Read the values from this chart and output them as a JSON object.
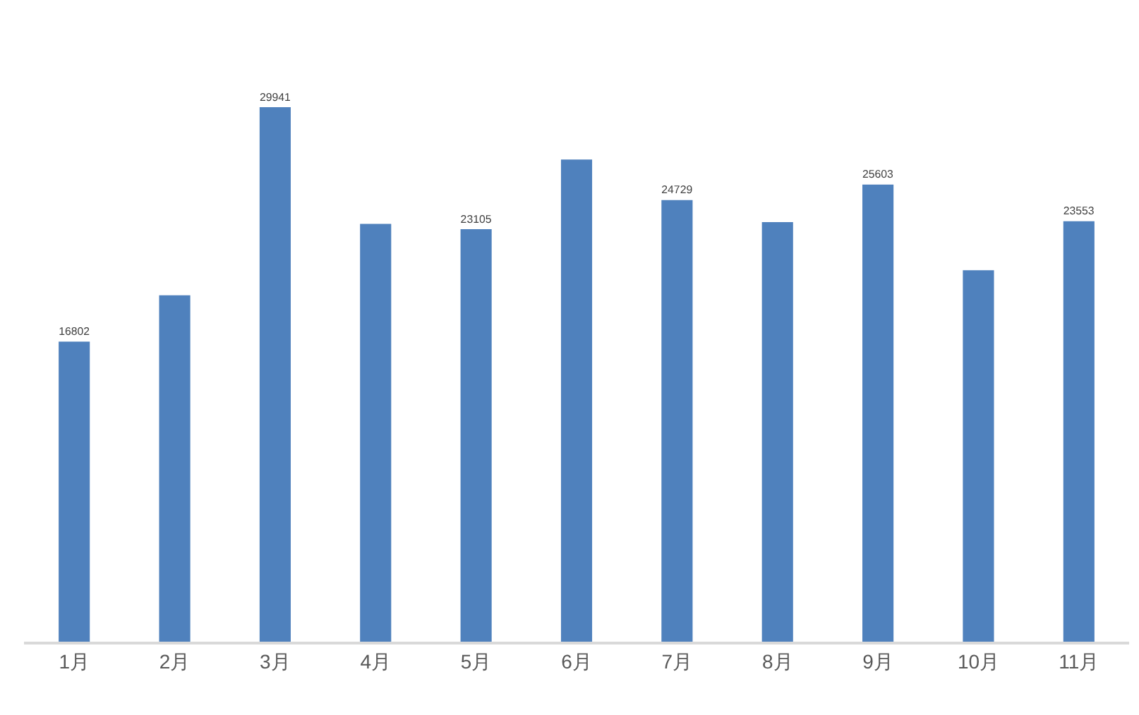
{
  "chart_data": {
    "type": "bar",
    "categories": [
      "1月",
      "2月",
      "3月",
      "4月",
      "5月",
      "6月",
      "7月",
      "8月",
      "9月",
      "10月",
      "11月"
    ],
    "values": [
      16802,
      19400,
      29941,
      23400,
      23105,
      27000,
      24729,
      23500,
      25603,
      20800,
      23553
    ],
    "value_labels": [
      "16802",
      null,
      "29941",
      null,
      "23105",
      null,
      "24729",
      null,
      "25603",
      null,
      "23553"
    ],
    "color": "#4f81bd",
    "grid": false,
    "legend": false,
    "tick_labels": "x"
  }
}
